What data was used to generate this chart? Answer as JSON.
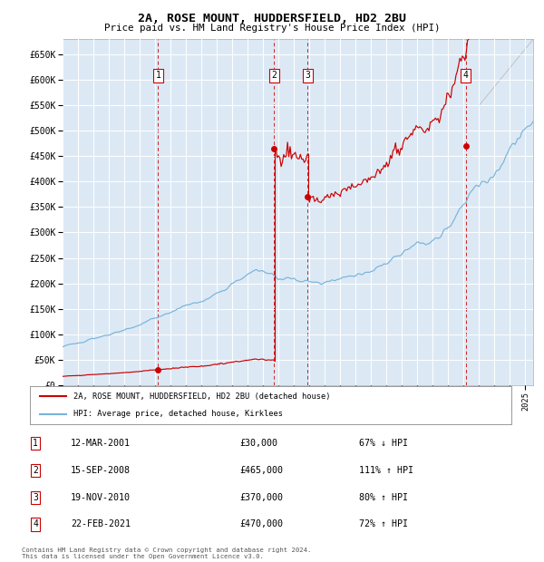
{
  "title": "2A, ROSE MOUNT, HUDDERSFIELD, HD2 2BU",
  "subtitle": "Price paid vs. HM Land Registry's House Price Index (HPI)",
  "plot_bg_color": "#dce9f5",
  "hpi_color": "#7ab3d9",
  "price_color": "#cc0000",
  "dashed_line_color": "#cc0000",
  "ylim": [
    0,
    680000
  ],
  "yticks": [
    0,
    50000,
    100000,
    150000,
    200000,
    250000,
    300000,
    350000,
    400000,
    450000,
    500000,
    550000,
    600000,
    650000
  ],
  "sales": [
    {
      "label": "1",
      "date_num": 2001.19,
      "price": 30000
    },
    {
      "label": "2",
      "date_num": 2008.71,
      "price": 465000
    },
    {
      "label": "3",
      "date_num": 2010.89,
      "price": 370000
    },
    {
      "label": "4",
      "date_num": 2021.14,
      "price": 470000
    }
  ],
  "legend_house_label": "2A, ROSE MOUNT, HUDDERSFIELD, HD2 2BU (detached house)",
  "legend_hpi_label": "HPI: Average price, detached house, Kirklees",
  "table_rows": [
    {
      "num": "1",
      "date": "12-MAR-2001",
      "price": "£30,000",
      "hpi": "67% ↓ HPI"
    },
    {
      "num": "2",
      "date": "15-SEP-2008",
      "price": "£465,000",
      "hpi": "111% ↑ HPI"
    },
    {
      "num": "3",
      "date": "19-NOV-2010",
      "price": "£370,000",
      "hpi": "80% ↑ HPI"
    },
    {
      "num": "4",
      "date": "22-FEB-2021",
      "price": "£470,000",
      "hpi": "72% ↑ HPI"
    }
  ],
  "footnote": "Contains HM Land Registry data © Crown copyright and database right 2024.\nThis data is licensed under the Open Government Licence v3.0.",
  "xmin": 1995.0,
  "xmax": 2025.5
}
